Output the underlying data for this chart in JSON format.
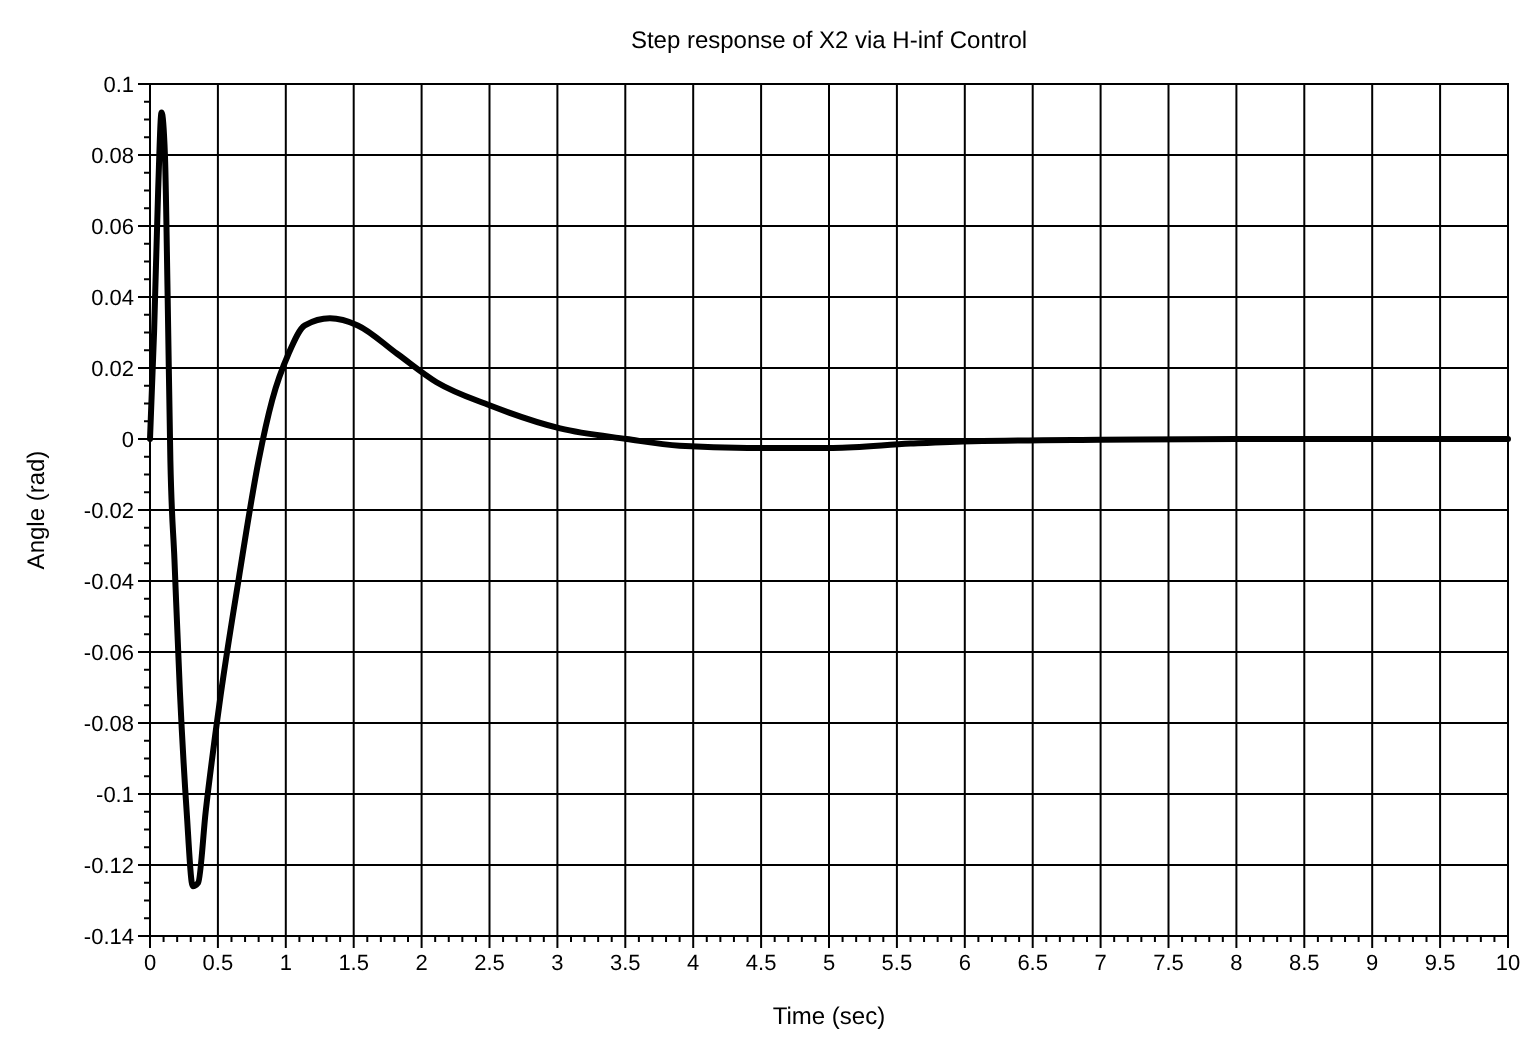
{
  "chart_data": {
    "type": "line",
    "title": "Step response of X2 via H-inf Control",
    "xlabel": "Time (sec)",
    "ylabel": "Angle (rad)",
    "x": [
      0,
      0.03,
      0.06,
      0.085,
      0.11,
      0.13,
      0.15,
      0.18,
      0.22,
      0.27,
      0.315,
      0.355,
      0.41,
      0.51,
      0.655,
      0.8,
      0.9,
      1.02,
      1.14,
      1.325,
      1.53,
      1.82,
      2.11,
      2.5,
      3.02,
      3.51,
      3.9,
      4.4,
      5.03,
      5.6,
      6.06,
      7,
      8,
      9,
      10
    ],
    "series": [
      {
        "color": "#000000",
        "values": [
          0,
          0.03,
          0.07,
          0.092,
          0.08,
          0.04,
          -0.006,
          -0.034,
          -0.071,
          -0.105,
          -0.126,
          -0.125,
          -0.105,
          -0.075,
          -0.039,
          -0.006,
          0.011,
          0.024,
          0.032,
          0.034,
          0.032,
          0.024,
          0.016,
          0.0095,
          0.003,
          0,
          -0.0019,
          -0.0025,
          -0.0025,
          -0.0013,
          -0.0006,
          -0.0002,
          0,
          0,
          0
        ]
      }
    ],
    "xlim": [
      0,
      10
    ],
    "ylim": [
      -0.14,
      0.1
    ],
    "xticks": [
      0,
      0.5,
      1,
      1.5,
      2,
      2.5,
      3,
      3.5,
      4,
      4.5,
      5,
      5.5,
      6,
      6.5,
      7,
      7.5,
      8,
      8.5,
      9,
      9.5,
      10
    ],
    "yticks": [
      -0.14,
      -0.12,
      -0.1,
      -0.08,
      -0.06,
      -0.04,
      -0.02,
      0,
      0.02,
      0.04,
      0.06,
      0.08,
      0.1
    ],
    "grid": true,
    "marker": "none",
    "line_style": "solid"
  }
}
